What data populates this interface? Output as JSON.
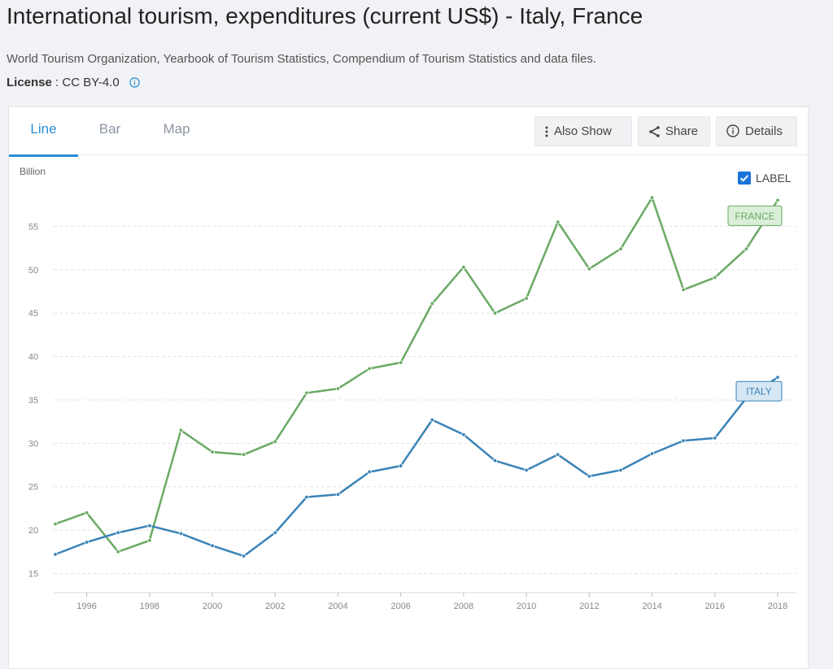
{
  "header": {
    "title": "International tourism, expenditures (current US$) - Italy, France",
    "source": "World Tourism Organization, Yearbook of Tourism Statistics, Compendium of Tourism Statistics and data files.",
    "license_label": "License",
    "license_sep": " : ",
    "license_value": "CC BY-4.0"
  },
  "tabs": [
    {
      "label": "Line",
      "active": true
    },
    {
      "label": "Bar",
      "active": false
    },
    {
      "label": "Map",
      "active": false
    }
  ],
  "actions": {
    "also_show": "Also Show",
    "share": "Share",
    "details": "Details"
  },
  "label_toggle": {
    "label": "LABEL",
    "checked": true
  },
  "colors": {
    "france": "#6aaa64",
    "italy": "#3a83b8",
    "accent": "#2a8fd6"
  },
  "chart_data": {
    "type": "line",
    "ylabel": "Billion",
    "xlabel": "",
    "ylim": [
      14.2,
      58.6
    ],
    "xlim": [
      1995,
      2018
    ],
    "yticks": [
      15,
      20,
      25,
      30,
      35,
      40,
      45,
      50,
      55
    ],
    "xticks": [
      1996,
      1998,
      2000,
      2002,
      2004,
      2006,
      2008,
      2010,
      2012,
      2014,
      2016,
      2018
    ],
    "grid": true,
    "x": [
      1995,
      1996,
      1997,
      1998,
      1999,
      2000,
      2001,
      2002,
      2003,
      2004,
      2005,
      2006,
      2007,
      2008,
      2009,
      2010,
      2011,
      2012,
      2013,
      2014,
      2015,
      2016,
      2017,
      2018
    ],
    "series": [
      {
        "name": "FRANCE",
        "key": "france",
        "values": [
          20.7,
          22.0,
          17.5,
          18.8,
          31.5,
          29.0,
          28.7,
          30.2,
          35.8,
          36.3,
          38.6,
          39.3,
          46.1,
          50.3,
          45.0,
          46.7,
          55.5,
          50.1,
          52.4,
          58.3,
          47.7,
          49.1,
          52.4,
          58.0
        ]
      },
      {
        "name": "ITALY",
        "key": "italy",
        "values": [
          17.2,
          18.6,
          19.7,
          20.5,
          19.6,
          18.2,
          17.0,
          19.7,
          23.8,
          24.1,
          26.7,
          27.4,
          32.7,
          31.0,
          28.0,
          26.9,
          28.7,
          26.2,
          26.9,
          28.8,
          30.3,
          30.6,
          35.2,
          37.6
        ]
      }
    ],
    "legend": "inline-end-labels"
  }
}
